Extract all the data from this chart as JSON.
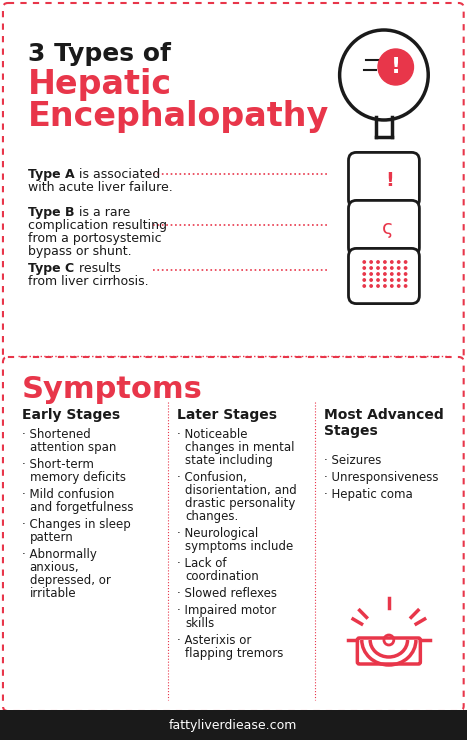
{
  "bg_color": "#ffffff",
  "border_color": "#e84a5a",
  "section1_bg": "#ffffff",
  "section2_bg": "#ffffff",
  "footer_bg": "#1a1a1a",
  "red_color": "#e8364a",
  "black_color": "#1a1a1a",
  "title_line1": "3 Types of",
  "title_line2": "Hepatic",
  "title_line3": "Encephalopathy",
  "types": [
    {
      "bold": "Type A",
      "text": " is associated\nwith acute liver failure."
    },
    {
      "bold": "Type B",
      "text": " is a rare\ncomplication resulting\nfrom a portosystemic\nbypass or shunt."
    },
    {
      "bold": "Type C",
      "text": " results\nfrom liver cirrhosis."
    }
  ],
  "symptoms_title": "Symptoms",
  "col1_title": "Early Stages",
  "col1_items": [
    "Shortened\nattention span",
    "Short-term\nmemory deficits",
    "Mild confusion\nand forgetfulness",
    "Changes in sleep\npattern",
    "Abnormally\nanxious,\ndepressed, or\nirritable"
  ],
  "col2_title": "Later Stages",
  "col2_items": [
    "Noticeable\nchanges in mental\nstate including",
    "Confusion,\ndisorientation, and\ndrastic personality\nchanges.",
    "Neurological\nsymptoms include",
    "Lack of\ncoordination",
    "Slowed reflexes",
    "Impaired motor\nskills",
    "Asterixis or\nflapping tremors"
  ],
  "col3_title": "Most Advanced\nStages",
  "col3_items": [
    "Seizures",
    "Unresponsiveness",
    "Hepatic coma"
  ],
  "footer_text": "fattyliverdiease.com"
}
